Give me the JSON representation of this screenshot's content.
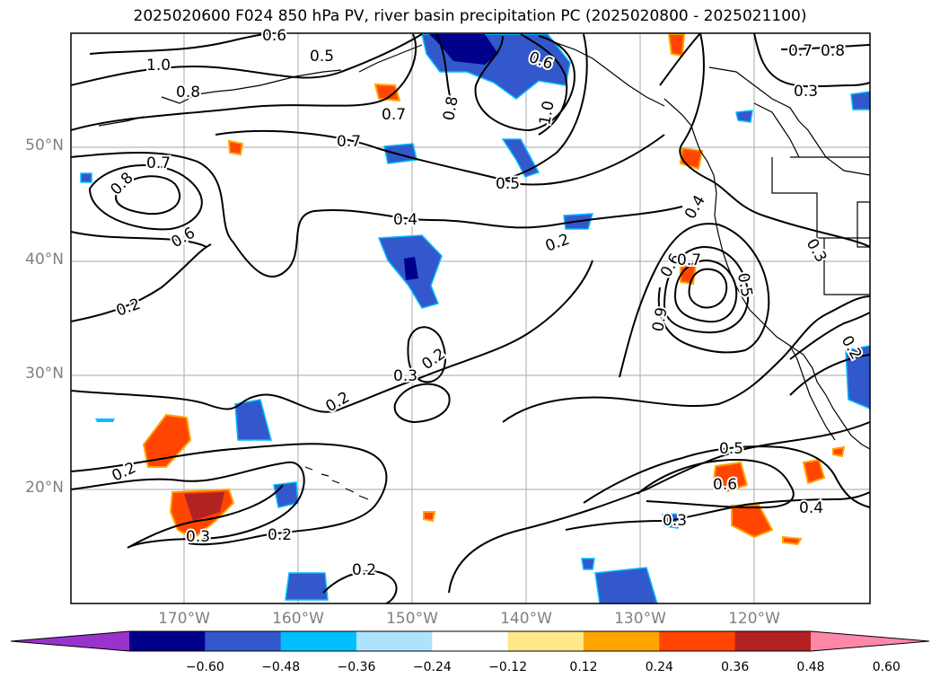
{
  "title": "2025020600 F024 850 hPa PV, river basin precipitation PC (2025020800 - 2025021100)",
  "lat_labels": [
    "50°N",
    "40°N",
    "30°N",
    "20°N"
  ],
  "lon_labels": [
    "170°W",
    "160°W",
    "150°W",
    "140°W",
    "130°W",
    "120°W"
  ],
  "contour_labels": [
    "1.0",
    "0.8",
    "0.7",
    "0.7",
    "0.8",
    "0.7",
    "0.6",
    "0.2",
    "0.4",
    "0.2",
    "0.3",
    "0.2",
    "0.2",
    "0.2",
    "0.3",
    "0.2",
    "0.2",
    "0.6",
    "0.5",
    "0.8",
    "1.0",
    "0.5",
    "0.4",
    "0.6",
    "0.5",
    "0.7",
    "0.9",
    "0.2",
    "0.5",
    "0.6",
    "0.3",
    "0.4",
    "0.8",
    "0.7",
    "0.3",
    "0.3",
    "0.6"
  ],
  "colorbar": {
    "tick_labels": [
      "−0.60",
      "−0.48",
      "−0.36",
      "−0.24",
      "−0.12",
      "0.12",
      "0.24",
      "0.36",
      "0.48",
      "0.60"
    ],
    "colors": [
      "#9933cc",
      "#00008b",
      "#3358cc",
      "#00bfff",
      "#aee3ff",
      "#ffffff",
      "#ffe88a",
      "#ffa500",
      "#ff4500",
      "#b22222",
      "#ff88aa"
    ]
  }
}
